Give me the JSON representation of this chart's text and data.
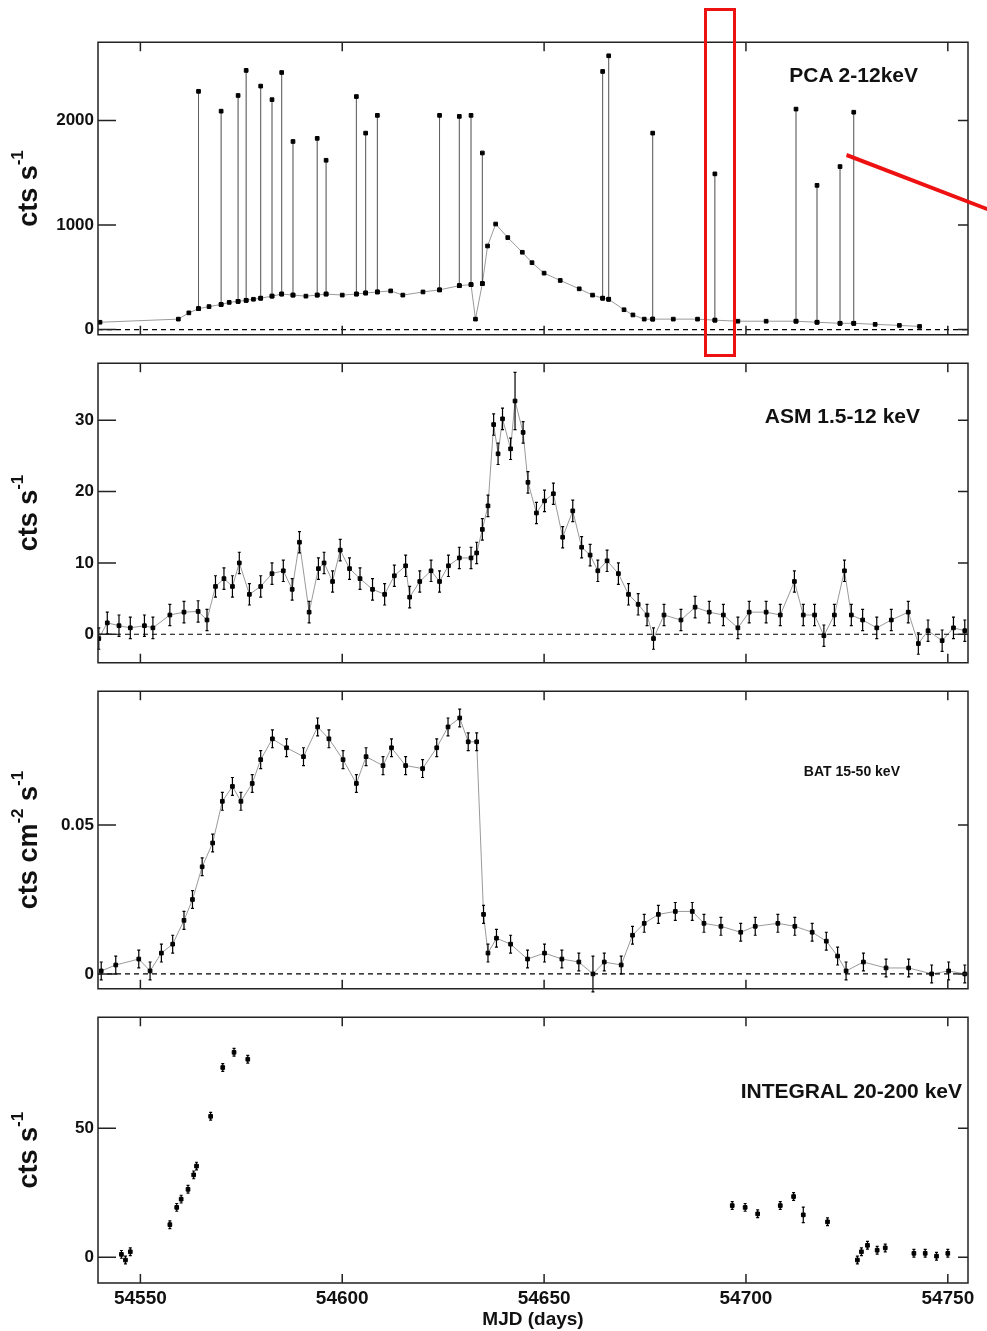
{
  "chart_data": [
    {
      "type": "line",
      "title": "PCA 2-12keV",
      "ylabel": "cts s$^{-1}$",
      "marker": "square",
      "tick_labels": "y",
      "xlim": [
        54539.5,
        54755
      ],
      "xticks": [
        54550,
        54600,
        54650,
        54700,
        54750
      ],
      "ylim": [
        -50,
        2750
      ],
      "yticks": [
        0,
        1000,
        2000
      ],
      "ref_lines": [
        {
          "axis": "y",
          "value": 0,
          "color": "#000000",
          "line_style": "dashed"
        }
      ],
      "x": [
        54540,
        54559.4,
        54562,
        54564.4,
        54564.4,
        54564.4,
        54567,
        54570,
        54570,
        54570,
        54572,
        54574.2,
        54574.2,
        54574.2,
        54576.2,
        54576.2,
        54576.2,
        54578,
        54579.8,
        54579.8,
        54579.8,
        54582.6,
        54582.6,
        54582.6,
        54585,
        54585,
        54585,
        54587.8,
        54587.8,
        54587.8,
        54591,
        54593.8,
        54593.8,
        54593.8,
        54596,
        54596,
        54596,
        54600,
        54603.5,
        54603.5,
        54603.5,
        54605.8,
        54605.8,
        54605.8,
        54608.7,
        54608.7,
        54608.7,
        54612,
        54615,
        54620,
        54624.1,
        54624.1,
        54624.1,
        54629,
        54629,
        54629,
        54631.9,
        54631.9,
        54631.9,
        54633,
        54634.7,
        54634.7,
        54634.7,
        54636,
        54638,
        54641,
        54644.6,
        54647,
        54650,
        54654,
        54658.7,
        54662,
        54664.5,
        54664.5,
        54664.5,
        54666,
        54666,
        54666,
        54669.8,
        54672,
        54674.8,
        54676.9,
        54676.9,
        54676.9,
        54682,
        54688,
        54692.3,
        54692.3,
        54692.3,
        54698,
        54705,
        54712.4,
        54712.4,
        54712.4,
        54717.6,
        54717.6,
        54717.6,
        54723.3,
        54723.3,
        54723.3,
        54726.7,
        54726.7,
        54726.7,
        54732,
        54738,
        54743
      ],
      "series": [
        {
          "color": "#000000",
          "values": [
            70,
            100,
            160,
            200,
            2280,
            200,
            220,
            240,
            2090,
            240,
            260,
            270,
            2240,
            270,
            280,
            2480,
            280,
            290,
            300,
            2330,
            300,
            320,
            2200,
            320,
            340,
            2460,
            340,
            330,
            1800,
            330,
            320,
            330,
            1830,
            330,
            340,
            1620,
            340,
            330,
            340,
            2230,
            340,
            350,
            1880,
            350,
            360,
            2050,
            360,
            370,
            330,
            360,
            380,
            2050,
            380,
            420,
            2040,
            420,
            430,
            2050,
            430,
            100,
            440,
            1690,
            440,
            800,
            1010,
            880,
            740,
            640,
            540,
            470,
            390,
            330,
            300,
            2470,
            300,
            290,
            2620,
            290,
            190,
            140,
            100,
            100,
            1880,
            100,
            100,
            100,
            90,
            1490,
            90,
            80,
            80,
            80,
            2110,
            80,
            70,
            1380,
            70,
            60,
            1560,
            60,
            60,
            2080,
            60,
            50,
            40,
            30
          ]
        }
      ]
    },
    {
      "type": "line",
      "title": "ASM 1.5-12 keV",
      "ylabel": "cts s$^{-1}$",
      "marker": "square",
      "tick_labels": "y",
      "xlim": [
        54539.5,
        54755
      ],
      "xticks": [
        54550,
        54600,
        54650,
        54700,
        54750
      ],
      "ylim": [
        -4,
        38
      ],
      "yticks": [
        0,
        10,
        20,
        30
      ],
      "ref_lines": [
        {
          "axis": "y",
          "value": 0,
          "color": "#000000",
          "line_style": "dashed"
        }
      ],
      "x": [
        54539.7,
        54541.8,
        54544.7,
        54547.5,
        54551,
        54553.1,
        54557.3,
        54560.8,
        54564.3,
        54566.5,
        54568.6,
        54570.7,
        54572.8,
        54574.5,
        54577,
        54579.8,
        54582.6,
        54585.4,
        54587.6,
        54589.4,
        54591.8,
        54594.1,
        54595.5,
        54597.6,
        54599.5,
        54601.8,
        54604.4,
        54607.5,
        54610.5,
        54612.9,
        54615.7,
        54616.7,
        54619.2,
        54622,
        54624.1,
        54626.3,
        54629,
        54631.9,
        54633.3,
        54634.7,
        54636.1,
        54637.5,
        54638.6,
        54639.7,
        54641.7,
        54642.8,
        54644.8,
        54646,
        54648.1,
        54650.1,
        54652.3,
        54654.6,
        54657.1,
        54659.3,
        54661.4,
        54663.3,
        54665.6,
        54668.4,
        54670.9,
        54673.3,
        54675.5,
        54677.1,
        54679.7,
        54683.9,
        54687.4,
        54690.9,
        54694.4,
        54698,
        54700.8,
        54705,
        54708.5,
        54712,
        54714.2,
        54717,
        54719.3,
        54721.9,
        54724.4,
        54726.1,
        54728.9,
        54732.4,
        54736,
        54740.2,
        54742.7,
        54745.1,
        54748.6,
        54751.4,
        54754.2
      ],
      "series": [
        {
          "color": "#000000",
          "values": [
            -0.6,
            1.6,
            1.2,
            0.9,
            1.2,
            0.9,
            2.7,
            3.1,
            3.2,
            2.0,
            6.7,
            7.8,
            6.7,
            10.0,
            5.6,
            6.7,
            8.5,
            8.9,
            6.3,
            12.9,
            3.1,
            9.2,
            10.0,
            7.4,
            11.8,
            9.2,
            7.8,
            6.3,
            5.6,
            8.2,
            9.6,
            5.2,
            7.4,
            8.9,
            7.4,
            9.6,
            10.7,
            10.7,
            11.4,
            14.7,
            18.0,
            29.4,
            25.3,
            30.2,
            26.0,
            32.7,
            28.3,
            21.3,
            17.0,
            18.7,
            19.7,
            13.6,
            17.3,
            12.2,
            11.1,
            8.9,
            10.3,
            8.5,
            5.6,
            4.2,
            2.7,
            -0.6,
            2.7,
            2.0,
            3.8,
            3.1,
            2.7,
            0.9,
            3.1,
            3.1,
            2.7,
            7.4,
            2.7,
            2.7,
            -0.2,
            2.7,
            8.9,
            2.7,
            2.0,
            0.9,
            2.0,
            3.1,
            -1.3,
            0.5,
            -0.9,
            0.9,
            0.5
          ],
          "errors": [
            1.5,
            1.5,
            1.5,
            1.5,
            1.5,
            1.5,
            1.5,
            1.5,
            1.5,
            1.5,
            1.5,
            1.5,
            1.5,
            1.5,
            1.5,
            1.5,
            1.5,
            1.5,
            1.5,
            1.5,
            1.5,
            1.5,
            1.5,
            1.5,
            1.5,
            1.5,
            1.5,
            1.5,
            1.5,
            1.5,
            1.5,
            1.5,
            1.5,
            1.5,
            1.5,
            1.5,
            1.5,
            1.5,
            1.5,
            1.5,
            1.5,
            1.5,
            1.5,
            1.5,
            1.5,
            4,
            1.5,
            1.5,
            1.5,
            1.5,
            1.5,
            1.5,
            1.5,
            1.5,
            1.5,
            1.5,
            1.5,
            1.5,
            1.5,
            1.5,
            1.5,
            1.5,
            1.5,
            1.5,
            1.5,
            1.5,
            1.5,
            1.5,
            1.5,
            1.5,
            1.5,
            1.5,
            1.5,
            1.5,
            1.5,
            1.5,
            1.5,
            1.5,
            1.5,
            1.5,
            1.5,
            1.5,
            1.5,
            1.5,
            1.5,
            1.5,
            1.5
          ]
        }
      ]
    },
    {
      "type": "line",
      "title": "BAT 15-50 keV",
      "ylabel": "cts cm$^{-2}$ s$^{-1}$",
      "marker": "square",
      "tick_labels": "y",
      "xlim": [
        54539.5,
        54755
      ],
      "xticks": [
        54550,
        54600,
        54650,
        54700,
        54750
      ],
      "ylim": [
        -0.005,
        0.095
      ],
      "yticks": [
        0,
        0.05
      ],
      "ref_lines": [
        {
          "axis": "y",
          "value": 0,
          "color": "#000000",
          "line_style": "dashed"
        }
      ],
      "x": [
        54540.3,
        54543.9,
        54549.6,
        54552.4,
        54555.2,
        54558,
        54560.8,
        54562.9,
        54565.3,
        54567.9,
        54570.3,
        54572.8,
        54574.9,
        54577.7,
        54579.8,
        54582.7,
        54586.2,
        54590.4,
        54593.9,
        54596.7,
        54600.2,
        54603.5,
        54605.9,
        54610.1,
        54612.2,
        54615.7,
        54619.9,
        54623.4,
        54626.2,
        54629.1,
        54631.2,
        54633.3,
        54635,
        54636.1,
        54638.2,
        54641.7,
        54645.9,
        54650.1,
        54654.4,
        54658.6,
        54662.1,
        54664.9,
        54669.1,
        54671.9,
        54674.8,
        54678.3,
        54682.5,
        54686.7,
        54689.6,
        54693.8,
        54698.7,
        54702.3,
        54707.9,
        54712.1,
        54716.4,
        54719.9,
        54722.7,
        54724.8,
        54729.1,
        54734.7,
        54740.3,
        54746,
        54750.2,
        54754.2
      ],
      "series": [
        {
          "color": "#000000",
          "values": [
            0.001,
            0.003,
            0.005,
            0.001,
            0.007,
            0.01,
            0.018,
            0.025,
            0.036,
            0.044,
            0.058,
            0.063,
            0.058,
            0.064,
            0.072,
            0.079,
            0.076,
            0.073,
            0.083,
            0.079,
            0.072,
            0.064,
            0.073,
            0.07,
            0.076,
            0.07,
            0.069,
            0.076,
            0.083,
            0.086,
            0.078,
            0.078,
            0.02,
            0.007,
            0.012,
            0.01,
            0.005,
            0.007,
            0.005,
            0.004,
            0.0,
            0.004,
            0.003,
            0.013,
            0.017,
            0.02,
            0.021,
            0.021,
            0.017,
            0.016,
            0.014,
            0.016,
            0.017,
            0.016,
            0.014,
            0.011,
            0.006,
            0.001,
            0.004,
            0.002,
            0.002,
            0.0,
            0.001,
            0.0
          ],
          "errors": [
            0.003,
            0.003,
            0.003,
            0.003,
            0.003,
            0.003,
            0.003,
            0.003,
            0.003,
            0.003,
            0.003,
            0.003,
            0.003,
            0.003,
            0.003,
            0.003,
            0.003,
            0.003,
            0.003,
            0.003,
            0.003,
            0.003,
            0.003,
            0.003,
            0.003,
            0.003,
            0.003,
            0.003,
            0.003,
            0.003,
            0.003,
            0.003,
            0.003,
            0.003,
            0.003,
            0.003,
            0.003,
            0.003,
            0.003,
            0.003,
            0.006,
            0.003,
            0.003,
            0.003,
            0.003,
            0.003,
            0.003,
            0.003,
            0.003,
            0.003,
            0.003,
            0.003,
            0.003,
            0.003,
            0.003,
            0.003,
            0.003,
            0.003,
            0.003,
            0.003,
            0.003,
            0.003,
            0.003,
            0.003
          ]
        }
      ]
    },
    {
      "type": "scatter",
      "title": "INTEGRAL 20-200 keV",
      "ylabel": "cts s$^{-1}$",
      "xlabel": "MJD (days)",
      "marker": "square",
      "xlim": [
        54539.5,
        54755
      ],
      "xticks": [
        54550,
        54600,
        54650,
        54700,
        54750
      ],
      "ylim": [
        -10,
        93
      ],
      "yticks": [
        0,
        50
      ],
      "x": [
        54545.3,
        54546.3,
        54547.5,
        54557.3,
        54559,
        54560.1,
        54561.8,
        54563.2,
        54563.9,
        54567.4,
        54570.4,
        54573.2,
        54576.6,
        54696.6,
        54699.8,
        54702.9,
        54708.5,
        54711.8,
        54714.2,
        54720.2,
        54727.6,
        54728.6,
        54730.1,
        54732.5,
        54734.5,
        54741.6,
        54744.4,
        54747.2,
        54750
      ],
      "series": [
        {
          "color": "#000000",
          "values": [
            1.1,
            -1.1,
            2.1,
            12.6,
            19.3,
            22.5,
            26.3,
            31.9,
            35.3,
            54.6,
            73.5,
            79.4,
            76.7,
            20.0,
            19.3,
            16.8,
            20.0,
            23.5,
            16.4,
            13.7,
            -1.1,
            2.1,
            4.6,
            2.7,
            3.6,
            1.5,
            1.5,
            0.4,
            1.5
          ],
          "errors": [
            1.5,
            1.5,
            1.5,
            1.5,
            1.5,
            1.5,
            1.5,
            1.5,
            1.5,
            1.5,
            1.5,
            1.5,
            1.5,
            1.5,
            1.5,
            1.5,
            1.5,
            1.5,
            3,
            1.5,
            1.5,
            1.5,
            1.5,
            1.5,
            1.5,
            1.5,
            1.5,
            1.5,
            1.5
          ]
        }
      ]
    }
  ]
}
